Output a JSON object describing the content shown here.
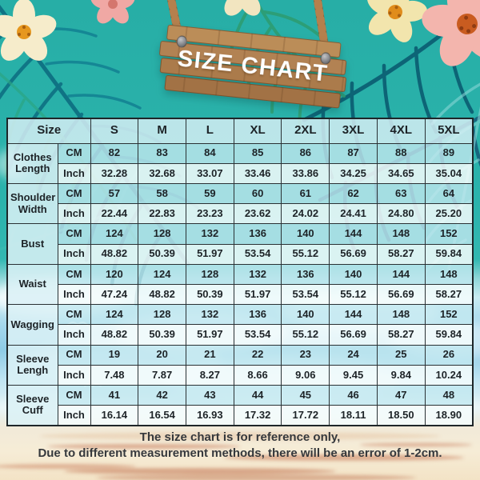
{
  "sign": {
    "title": "SIZE CHART"
  },
  "chart_data": {
    "type": "table",
    "title": "SIZE CHART",
    "corner_header": "Size",
    "columns": [
      "S",
      "M",
      "L",
      "XL",
      "2XL",
      "3XL",
      "4XL",
      "5XL"
    ],
    "unit_labels": [
      "CM",
      "Inch"
    ],
    "rows": [
      {
        "label": "Clothes Length",
        "cm": [
          "82",
          "83",
          "84",
          "85",
          "86",
          "87",
          "88",
          "89"
        ],
        "inch": [
          "32.28",
          "32.68",
          "33.07",
          "33.46",
          "33.86",
          "34.25",
          "34.65",
          "35.04"
        ]
      },
      {
        "label": "Shoulder Width",
        "cm": [
          "57",
          "58",
          "59",
          "60",
          "61",
          "62",
          "63",
          "64"
        ],
        "inch": [
          "22.44",
          "22.83",
          "23.23",
          "23.62",
          "24.02",
          "24.41",
          "24.80",
          "25.20"
        ]
      },
      {
        "label": "Bust",
        "cm": [
          "124",
          "128",
          "132",
          "136",
          "140",
          "144",
          "148",
          "152"
        ],
        "inch": [
          "48.82",
          "50.39",
          "51.97",
          "53.54",
          "55.12",
          "56.69",
          "58.27",
          "59.84"
        ]
      },
      {
        "label": "Waist",
        "cm": [
          "120",
          "124",
          "128",
          "132",
          "136",
          "140",
          "144",
          "148"
        ],
        "inch": [
          "47.24",
          "48.82",
          "50.39",
          "51.97",
          "53.54",
          "55.12",
          "56.69",
          "58.27"
        ]
      },
      {
        "label": "Wagging",
        "cm": [
          "124",
          "128",
          "132",
          "136",
          "140",
          "144",
          "148",
          "152"
        ],
        "inch": [
          "48.82",
          "50.39",
          "51.97",
          "53.54",
          "55.12",
          "56.69",
          "58.27",
          "59.84"
        ]
      },
      {
        "label": "Sleeve Lengh",
        "cm": [
          "19",
          "20",
          "21",
          "22",
          "23",
          "24",
          "25",
          "26"
        ],
        "inch": [
          "7.48",
          "7.87",
          "8.27",
          "8.66",
          "9.06",
          "9.45",
          "9.84",
          "10.24"
        ]
      },
      {
        "label": "Sleeve Cuff",
        "cm": [
          "41",
          "42",
          "43",
          "44",
          "45",
          "46",
          "47",
          "48"
        ],
        "inch": [
          "16.14",
          "16.54",
          "16.93",
          "17.32",
          "17.72",
          "18.11",
          "18.50",
          "18.90"
        ]
      }
    ]
  },
  "footer": {
    "line1": "The size chart is for reference only,",
    "line2": "Due to different measurement methods, there will be an error of 1-2cm."
  },
  "colors": {
    "background_teal": "#2bb3ac",
    "sky_blue": "#8ecbe6",
    "sand": "#f3e3c6",
    "wood": "#b28253",
    "table_border": "#1e2629",
    "cm_row_tint": "#c3e8f0",
    "inch_row_tint": "#f3fbfc",
    "text": "#1d2327"
  }
}
